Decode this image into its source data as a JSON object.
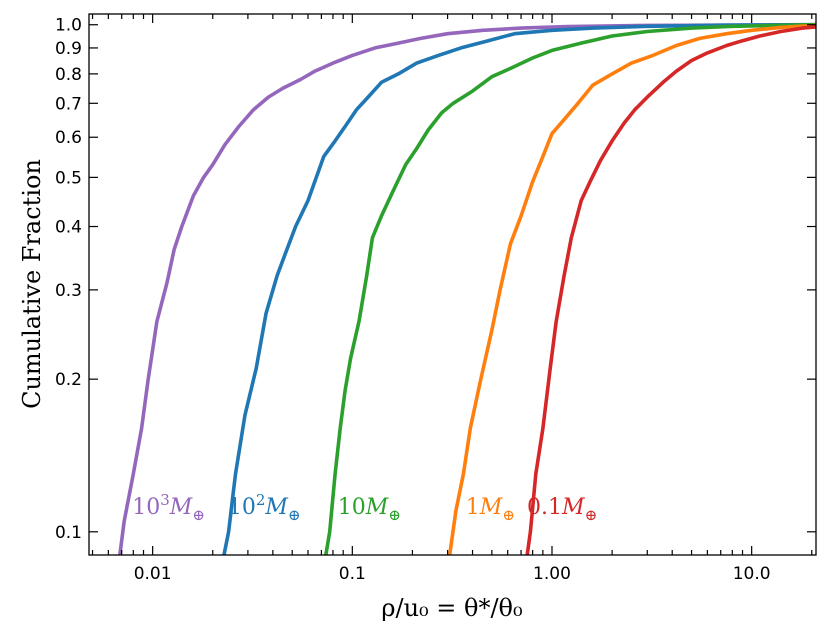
{
  "chart_data": {
    "type": "line",
    "title": "",
    "xlabel": "ρ/u₀ = θ*/θ₀",
    "ylabel": "Cumulative Fraction",
    "xscale": "log",
    "yscale": "log",
    "xlim": [
      0.0048,
      21
    ],
    "ylim": [
      0.09,
      1.05
    ],
    "grid": false,
    "x_ticks": [
      {
        "value": 0.01,
        "label": "0.01"
      },
      {
        "value": 0.1,
        "label": "0.1"
      },
      {
        "value": 1.0,
        "label": "1.00"
      },
      {
        "value": 10.0,
        "label": "10.0"
      }
    ],
    "y_ticks": [
      {
        "value": 0.1,
        "label": "0.1"
      },
      {
        "value": 0.2,
        "label": "0.2"
      },
      {
        "value": 0.3,
        "label": "0.3"
      },
      {
        "value": 0.4,
        "label": "0.4"
      },
      {
        "value": 0.5,
        "label": "0.5"
      },
      {
        "value": 0.6,
        "label": "0.6"
      },
      {
        "value": 0.7,
        "label": "0.7"
      },
      {
        "value": 0.8,
        "label": "0.8"
      },
      {
        "value": 0.9,
        "label": "0.9"
      },
      {
        "value": 1.0,
        "label": "1.0"
      }
    ],
    "series": [
      {
        "name": "10^3 M⊕",
        "label_base": "10",
        "label_exp": "3",
        "color": "#9467bd",
        "label_at": {
          "x": 0.0079,
          "y": 0.11
        },
        "points": [
          [
            0.0068,
            0.088
          ],
          [
            0.0072,
            0.105
          ],
          [
            0.008,
            0.13
          ],
          [
            0.0088,
            0.16
          ],
          [
            0.0095,
            0.2
          ],
          [
            0.0105,
            0.26
          ],
          [
            0.0118,
            0.31
          ],
          [
            0.0128,
            0.36
          ],
          [
            0.014,
            0.4
          ],
          [
            0.016,
            0.46
          ],
          [
            0.018,
            0.5
          ],
          [
            0.02,
            0.53
          ],
          [
            0.023,
            0.58
          ],
          [
            0.027,
            0.63
          ],
          [
            0.032,
            0.68
          ],
          [
            0.038,
            0.72
          ],
          [
            0.045,
            0.75
          ],
          [
            0.055,
            0.78
          ],
          [
            0.065,
            0.81
          ],
          [
            0.08,
            0.84
          ],
          [
            0.1,
            0.87
          ],
          [
            0.13,
            0.9
          ],
          [
            0.17,
            0.92
          ],
          [
            0.22,
            0.94
          ],
          [
            0.3,
            0.96
          ],
          [
            0.45,
            0.975
          ],
          [
            0.7,
            0.985
          ],
          [
            1.2,
            0.992
          ],
          [
            3.0,
            0.997
          ],
          [
            10,
            0.999
          ],
          [
            21,
            1.0
          ]
        ]
      },
      {
        "name": "10^2 M⊕",
        "label_base": "10",
        "label_exp": "2",
        "color": "#1f77b4",
        "label_at": {
          "x": 0.0238,
          "y": 0.11
        },
        "points": [
          [
            0.0225,
            0.088
          ],
          [
            0.024,
            0.1
          ],
          [
            0.026,
            0.13
          ],
          [
            0.029,
            0.17
          ],
          [
            0.033,
            0.21
          ],
          [
            0.037,
            0.27
          ],
          [
            0.042,
            0.32
          ],
          [
            0.047,
            0.36
          ],
          [
            0.052,
            0.4
          ],
          [
            0.06,
            0.45
          ],
          [
            0.066,
            0.5
          ],
          [
            0.072,
            0.55
          ],
          [
            0.082,
            0.59
          ],
          [
            0.092,
            0.63
          ],
          [
            0.105,
            0.68
          ],
          [
            0.12,
            0.72
          ],
          [
            0.14,
            0.77
          ],
          [
            0.17,
            0.8
          ],
          [
            0.21,
            0.84
          ],
          [
            0.27,
            0.87
          ],
          [
            0.35,
            0.9
          ],
          [
            0.48,
            0.93
          ],
          [
            0.65,
            0.96
          ],
          [
            1.0,
            0.975
          ],
          [
            1.6,
            0.985
          ],
          [
            3.0,
            0.993
          ],
          [
            7.0,
            0.998
          ],
          [
            21,
            1.0
          ]
        ]
      },
      {
        "name": "10 M⊕",
        "label_base": "10",
        "label_exp": "",
        "color": "#2ca02c",
        "label_at": {
          "x": 0.0845,
          "y": 0.11
        },
        "points": [
          [
            0.073,
            0.088
          ],
          [
            0.077,
            0.1
          ],
          [
            0.082,
            0.13
          ],
          [
            0.087,
            0.16
          ],
          [
            0.092,
            0.19
          ],
          [
            0.098,
            0.22
          ],
          [
            0.108,
            0.26
          ],
          [
            0.118,
            0.32
          ],
          [
            0.126,
            0.38
          ],
          [
            0.14,
            0.42
          ],
          [
            0.16,
            0.47
          ],
          [
            0.185,
            0.53
          ],
          [
            0.21,
            0.57
          ],
          [
            0.24,
            0.62
          ],
          [
            0.28,
            0.67
          ],
          [
            0.32,
            0.7
          ],
          [
            0.4,
            0.74
          ],
          [
            0.5,
            0.79
          ],
          [
            0.62,
            0.82
          ],
          [
            0.8,
            0.86
          ],
          [
            1.0,
            0.89
          ],
          [
            1.4,
            0.92
          ],
          [
            2.0,
            0.95
          ],
          [
            3.0,
            0.97
          ],
          [
            5.0,
            0.985
          ],
          [
            8.0,
            0.993
          ],
          [
            21,
            1.0
          ]
        ]
      },
      {
        "name": "1 M⊕",
        "label_base": "1",
        "label_exp": "",
        "color": "#ff7f0e",
        "label_at": {
          "x": 0.37,
          "y": 0.11
        },
        "points": [
          [
            0.305,
            0.088
          ],
          [
            0.33,
            0.11
          ],
          [
            0.36,
            0.13
          ],
          [
            0.39,
            0.16
          ],
          [
            0.44,
            0.2
          ],
          [
            0.5,
            0.25
          ],
          [
            0.55,
            0.3
          ],
          [
            0.62,
            0.37
          ],
          [
            0.7,
            0.42
          ],
          [
            0.8,
            0.49
          ],
          [
            0.9,
            0.55
          ],
          [
            1.0,
            0.61
          ],
          [
            1.15,
            0.65
          ],
          [
            1.35,
            0.7
          ],
          [
            1.6,
            0.76
          ],
          [
            2.0,
            0.8
          ],
          [
            2.5,
            0.84
          ],
          [
            3.2,
            0.87
          ],
          [
            4.2,
            0.91
          ],
          [
            5.5,
            0.94
          ],
          [
            7.5,
            0.96
          ],
          [
            10,
            0.975
          ],
          [
            14,
            0.988
          ],
          [
            21,
            0.997
          ]
        ]
      },
      {
        "name": "0.1 M⊕",
        "label_base": "0.1",
        "label_exp": "",
        "color": "#d62728",
        "label_at": {
          "x": 0.75,
          "y": 0.11
        },
        "points": [
          [
            0.745,
            0.088
          ],
          [
            0.78,
            0.1
          ],
          [
            0.83,
            0.13
          ],
          [
            0.9,
            0.16
          ],
          [
            0.98,
            0.21
          ],
          [
            1.05,
            0.26
          ],
          [
            1.15,
            0.32
          ],
          [
            1.25,
            0.38
          ],
          [
            1.4,
            0.45
          ],
          [
            1.55,
            0.49
          ],
          [
            1.75,
            0.54
          ],
          [
            2.0,
            0.59
          ],
          [
            2.3,
            0.64
          ],
          [
            2.6,
            0.68
          ],
          [
            3.0,
            0.72
          ],
          [
            3.6,
            0.77
          ],
          [
            4.2,
            0.81
          ],
          [
            5.0,
            0.85
          ],
          [
            6.0,
            0.88
          ],
          [
            7.5,
            0.91
          ],
          [
            9.0,
            0.93
          ],
          [
            11,
            0.95
          ],
          [
            14,
            0.97
          ],
          [
            18,
            0.985
          ],
          [
            21,
            0.99
          ]
        ]
      }
    ]
  }
}
